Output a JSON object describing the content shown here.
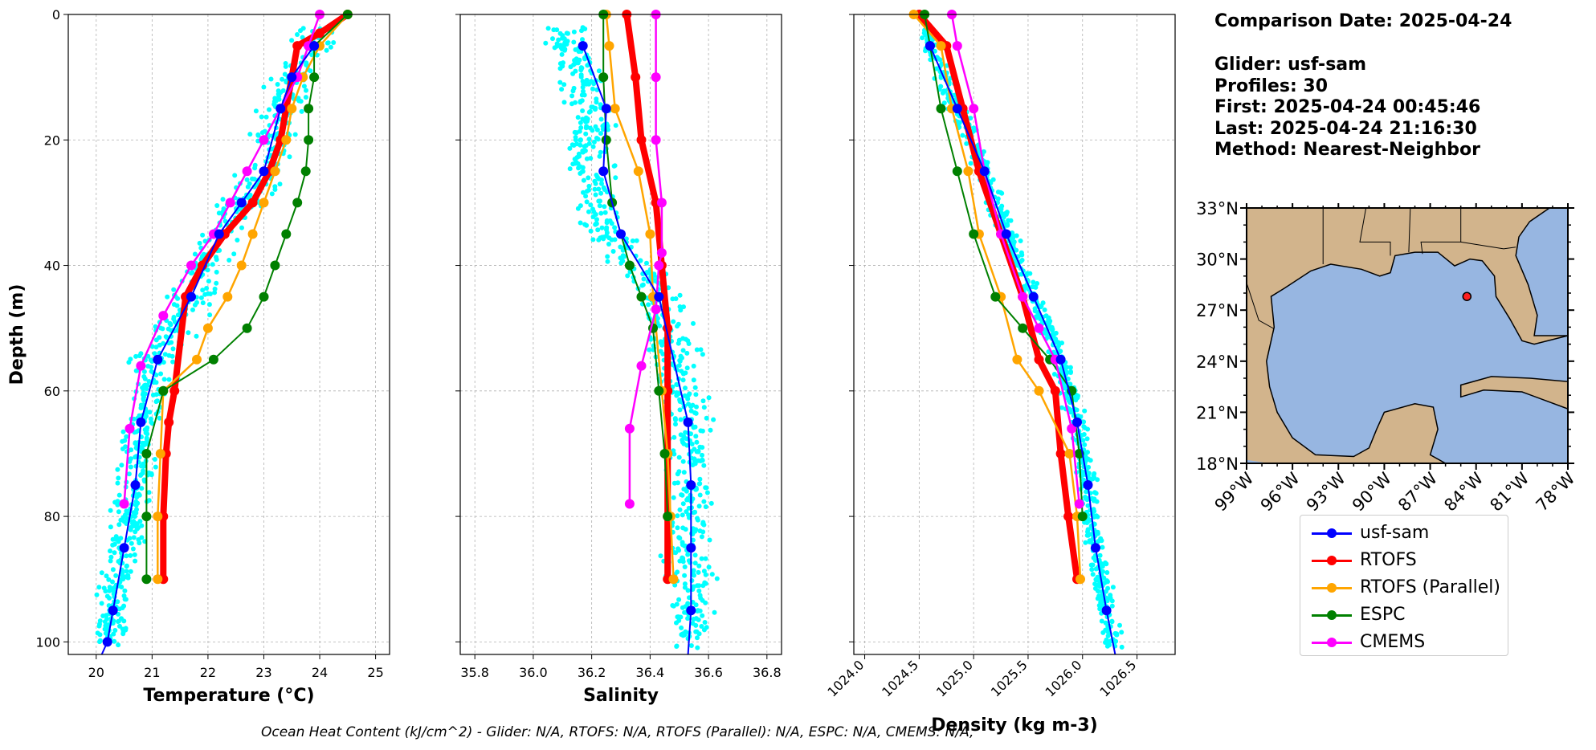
{
  "info": {
    "comparison_date": "Comparison Date: 2025-04-24",
    "glider": "Glider: usf-sam",
    "profiles": "Profiles: 30",
    "first": "First: 2025-04-24 00:45:46",
    "last": "Last: 2025-04-24 21:16:30",
    "method": "Method: Nearest-Neighbor"
  },
  "footnote": "Ocean Heat Content (kJ/cm^2) - Glider: N/A,  RTOFS: N/A,  RTOFS (Parallel): N/A,  ESPC: N/A,  CMEMS: N/A,",
  "legend": [
    {
      "label": "usf-sam",
      "color": "#0000ff"
    },
    {
      "label": "RTOFS",
      "color": "#ff0000"
    },
    {
      "label": "RTOFS (Parallel)",
      "color": "#ffa500"
    },
    {
      "label": "ESPC",
      "color": "#008000"
    },
    {
      "label": "CMEMS",
      "color": "#ff00ff"
    }
  ],
  "colors": {
    "glider_scatter": "#00ffff",
    "usf_sam": "#0000ff",
    "rtofs": "#ff0000",
    "rtofs_parallel": "#ffa500",
    "espc": "#008000",
    "cmems": "#ff00ff",
    "land": "#d2b48c",
    "ocean": "#97b6e1",
    "grid": "#b0b0b0"
  },
  "chart_data": [
    {
      "type": "line",
      "xlabel": "Temperature (°C)",
      "ylabel": "Depth (m)",
      "xlim": [
        19.5,
        25.25
      ],
      "ylim": [
        102,
        0
      ],
      "xticks": [
        20,
        21,
        22,
        23,
        24,
        25
      ],
      "yticks": [
        0,
        20,
        40,
        60,
        80,
        100
      ],
      "grid": true,
      "series": [
        {
          "name": "usf-sam",
          "x": [
            23.9,
            23.5,
            23.3,
            23.0,
            22.6,
            22.2,
            21.7,
            21.1,
            20.8,
            20.7,
            20.5,
            20.3,
            20.2,
            20.1
          ],
          "y": [
            5,
            10,
            15,
            25,
            30,
            35,
            45,
            55,
            65,
            75,
            85,
            95,
            100,
            102
          ]
        },
        {
          "name": "RTOFS",
          "x": [
            24.5,
            24.0,
            23.6,
            23.5,
            23.4,
            23.3,
            23.1,
            22.8,
            22.3,
            21.9,
            21.6,
            21.4,
            21.3,
            21.25,
            21.2,
            21.2
          ],
          "y": [
            0,
            3,
            5,
            10,
            15,
            20,
            25,
            30,
            35,
            40,
            45,
            60,
            65,
            70,
            80,
            90
          ]
        },
        {
          "name": "RTOFS (Parallel)",
          "x": [
            24.5,
            24.0,
            23.7,
            23.5,
            23.4,
            23.2,
            23.0,
            22.8,
            22.6,
            22.35,
            22.0,
            21.8,
            21.2,
            21.15,
            21.1,
            21.1
          ],
          "y": [
            0,
            5,
            10,
            15,
            20,
            25,
            30,
            35,
            40,
            45,
            50,
            55,
            60,
            70,
            80,
            90
          ]
        },
        {
          "name": "ESPC",
          "x": [
            24.5,
            23.9,
            23.9,
            23.8,
            23.8,
            23.75,
            23.6,
            23.4,
            23.2,
            23.0,
            22.7,
            22.1,
            21.2,
            20.9,
            20.9,
            20.9
          ],
          "y": [
            0,
            5,
            10,
            15,
            20,
            25,
            30,
            35,
            40,
            45,
            50,
            55,
            60,
            70,
            80,
            90
          ]
        },
        {
          "name": "CMEMS",
          "x": [
            24.0,
            23.8,
            23.6,
            23.3,
            23.0,
            22.7,
            22.4,
            22.1,
            21.7,
            21.2,
            20.8,
            20.6,
            20.5
          ],
          "y": [
            0,
            5,
            10,
            15,
            20,
            25,
            30,
            35,
            40,
            48,
            56,
            66,
            78
          ]
        }
      ]
    },
    {
      "type": "line",
      "xlabel": "Salinity",
      "ylim": [
        102,
        0
      ],
      "xlim": [
        35.75,
        36.85
      ],
      "xticks": [
        35.8,
        36.0,
        36.2,
        36.4,
        36.6,
        36.8
      ],
      "grid": true,
      "series": [
        {
          "name": "usf-sam",
          "x": [
            36.17,
            36.25,
            36.24,
            36.3,
            36.43,
            36.53,
            36.54,
            36.54,
            36.54,
            36.53
          ],
          "y": [
            5,
            15,
            25,
            35,
            45,
            65,
            75,
            85,
            95,
            102
          ]
        },
        {
          "name": "RTOFS",
          "x": [
            36.32,
            36.35,
            36.37,
            36.42,
            36.44,
            36.46,
            36.46,
            36.46,
            36.46,
            36.46
          ],
          "y": [
            0,
            10,
            20,
            30,
            40,
            50,
            60,
            70,
            80,
            90
          ]
        },
        {
          "name": "RTOFS (Parallel)",
          "x": [
            36.25,
            36.26,
            36.28,
            36.36,
            36.4,
            36.41,
            36.44,
            36.46,
            36.47,
            36.48
          ],
          "y": [
            0,
            5,
            15,
            25,
            35,
            45,
            60,
            70,
            80,
            90
          ]
        },
        {
          "name": "ESPC",
          "x": [
            36.24,
            36.24,
            36.25,
            36.27,
            36.33,
            36.37,
            36.41,
            36.43,
            36.45,
            36.46
          ],
          "y": [
            0,
            10,
            20,
            30,
            40,
            45,
            50,
            60,
            70,
            80
          ]
        },
        {
          "name": "CMEMS",
          "x": [
            36.42,
            36.42,
            36.42,
            36.44,
            36.44,
            36.43,
            36.42,
            36.37,
            36.33,
            36.33
          ],
          "y": [
            0,
            10,
            20,
            30,
            38,
            40,
            47,
            56,
            66,
            78
          ]
        }
      ]
    },
    {
      "type": "line",
      "xlabel": "Density (kg m-3)",
      "ylim": [
        102,
        0
      ],
      "xlim": [
        1023.9,
        1026.85
      ],
      "xticks": [
        1024.0,
        1024.5,
        1025.0,
        1025.5,
        1026.0,
        1026.5
      ],
      "grid": true,
      "series": [
        {
          "name": "usf-sam",
          "x": [
            1024.6,
            1024.85,
            1025.1,
            1025.3,
            1025.55,
            1025.8,
            1025.95,
            1026.05,
            1026.12,
            1026.22,
            1026.3
          ],
          "y": [
            5,
            15,
            25,
            35,
            45,
            55,
            65,
            75,
            85,
            95,
            102
          ]
        },
        {
          "name": "RTOFS",
          "x": [
            1024.5,
            1024.75,
            1024.9,
            1025.05,
            1025.25,
            1025.45,
            1025.6,
            1025.75,
            1025.8,
            1025.87,
            1025.95
          ],
          "y": [
            0,
            5,
            15,
            25,
            35,
            45,
            55,
            60,
            70,
            80,
            90
          ]
        },
        {
          "name": "RTOFS (Parallel)",
          "x": [
            1024.45,
            1024.7,
            1024.8,
            1024.95,
            1025.05,
            1025.25,
            1025.4,
            1025.6,
            1025.88,
            1025.95,
            1025.98
          ],
          "y": [
            0,
            5,
            15,
            25,
            35,
            45,
            55,
            60,
            70,
            80,
            90
          ]
        },
        {
          "name": "ESPC",
          "x": [
            1024.55,
            1024.6,
            1024.7,
            1024.85,
            1025.0,
            1025.2,
            1025.45,
            1025.7,
            1025.9,
            1025.97,
            1026.0
          ],
          "y": [
            0,
            5,
            15,
            25,
            35,
            45,
            50,
            55,
            60,
            70,
            80
          ]
        },
        {
          "name": "CMEMS",
          "x": [
            1024.8,
            1024.85,
            1025.0,
            1025.1,
            1025.25,
            1025.45,
            1025.6,
            1025.75,
            1025.9,
            1025.97
          ],
          "y": [
            0,
            5,
            15,
            25,
            35,
            45,
            50,
            55,
            66,
            78
          ]
        }
      ]
    },
    {
      "type": "map",
      "lon_ticks": [
        "99°W",
        "96°W",
        "93°W",
        "90°W",
        "87°W",
        "84°W",
        "81°W",
        "78°W"
      ],
      "lat_ticks": [
        "33°N",
        "30°N",
        "27°N",
        "24°N",
        "21°N",
        "18°N"
      ],
      "lon_range": [
        -99,
        -78
      ],
      "lat_range": [
        18,
        33
      ],
      "glider_position": {
        "lon": -84.6,
        "lat": 27.8
      }
    }
  ]
}
